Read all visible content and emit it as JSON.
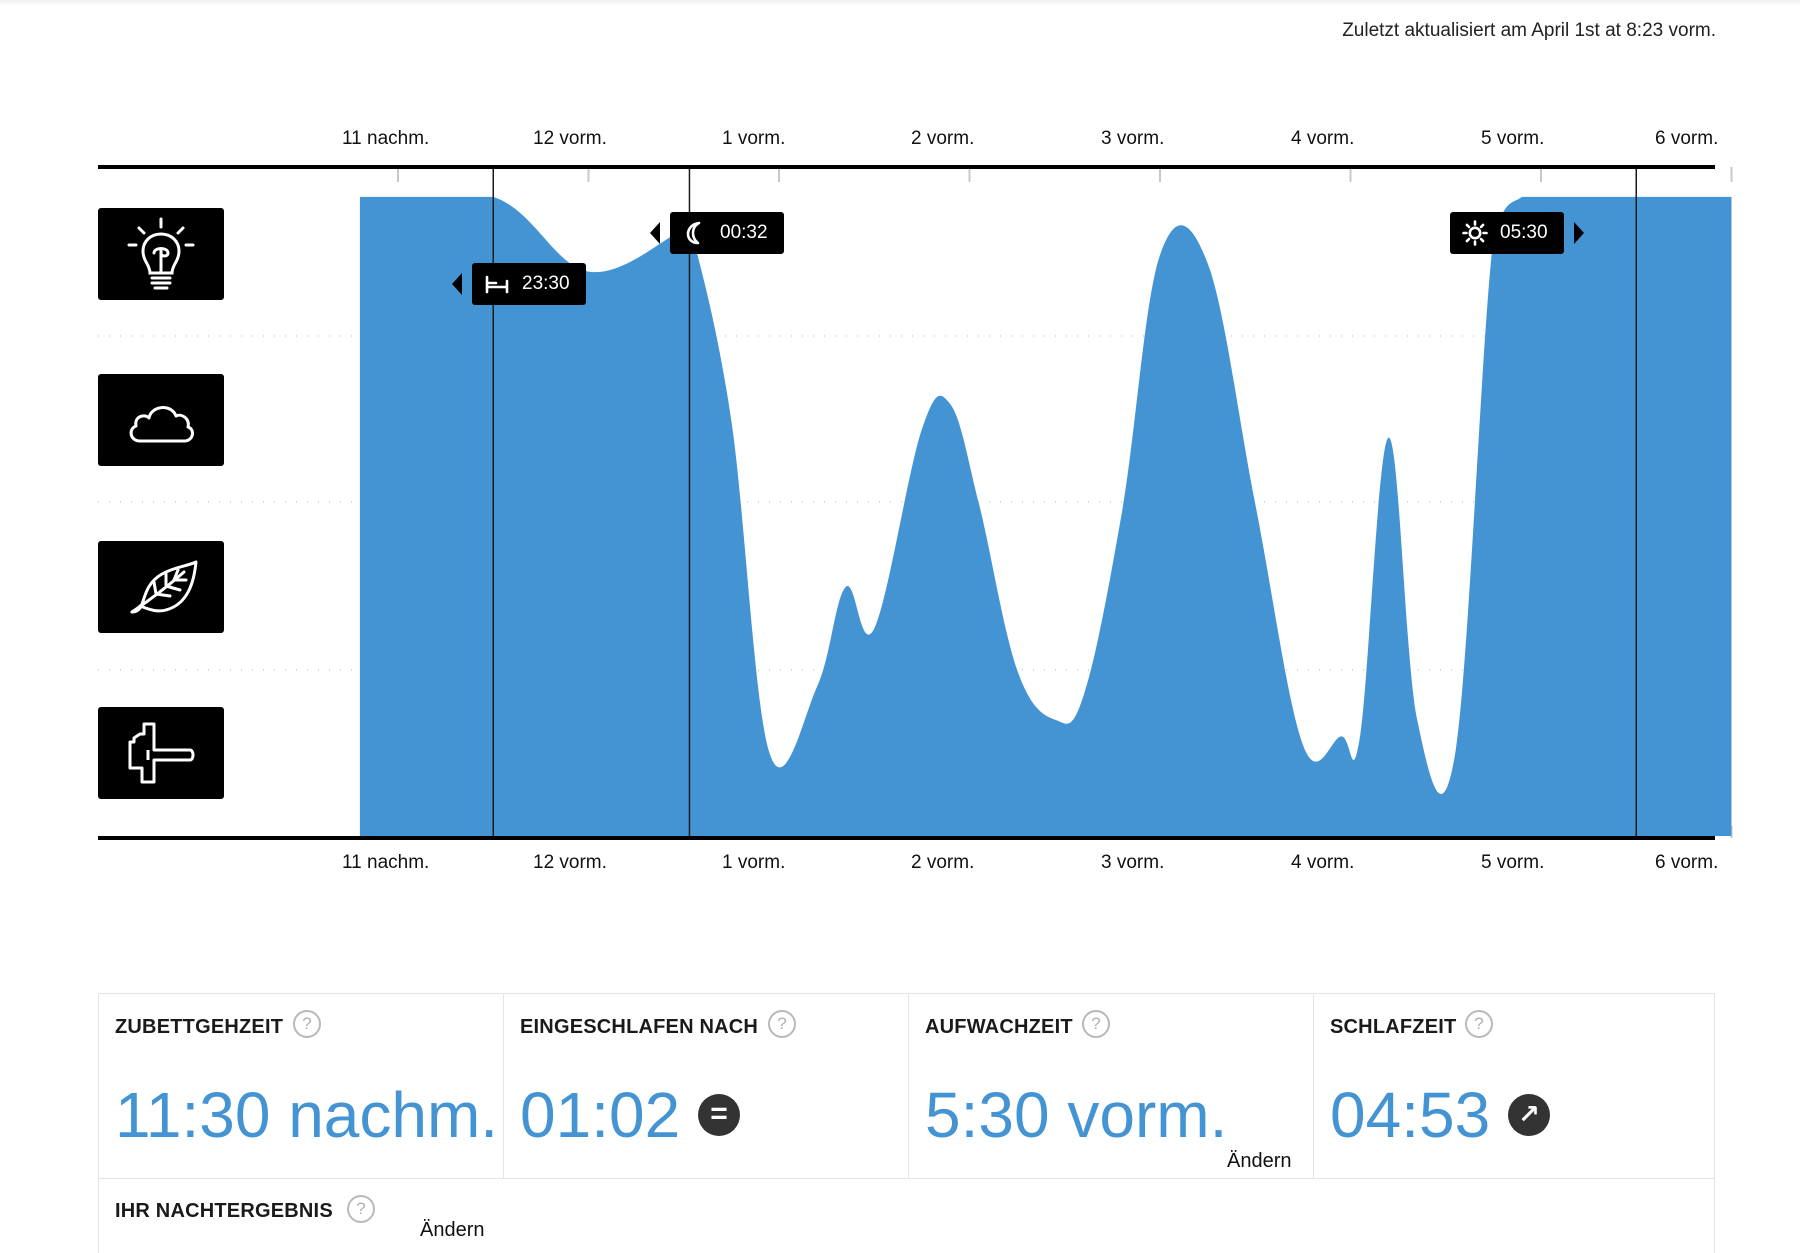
{
  "header": {
    "updated_text": "Zuletzt aktualisiert am April 1st at 8:23 vorm."
  },
  "colors": {
    "area": "#4494d4",
    "icon_bg": "#000000",
    "value_text": "#4494d4"
  },
  "axis": {
    "tick_labels": [
      "11 nachm.",
      "12 vorm.",
      "1 vorm.",
      "2 vorm.",
      "3 vorm.",
      "4 vorm.",
      "5 vorm.",
      "6 vorm."
    ]
  },
  "sleep_stages": [
    {
      "icon": "lightbulb-icon"
    },
    {
      "icon": "cloud-icon"
    },
    {
      "icon": "leaf-icon"
    },
    {
      "icon": "anvil-icon"
    }
  ],
  "markers": {
    "bedtime": {
      "label": "23:30",
      "icon": "bed-icon"
    },
    "asleep": {
      "label": "00:32",
      "icon": "moon-icon"
    },
    "wake": {
      "label": "05:30",
      "icon": "sun-icon"
    }
  },
  "chart_data": {
    "type": "area",
    "x_unit": "hours after 11 nachm.",
    "xlim": [
      -0.2,
      7.0
    ],
    "y_levels": [
      "awake",
      "light",
      "deep",
      "very deep"
    ],
    "ylim": [
      0,
      3.85
    ],
    "x": [
      -0.2,
      0.5,
      1.0,
      1.5,
      1.55,
      1.75,
      1.95,
      2.2,
      2.35,
      2.5,
      2.75,
      2.9,
      3.05,
      3.25,
      3.45,
      3.6,
      3.8,
      4.0,
      4.25,
      4.5,
      4.75,
      4.95,
      5.05,
      5.2,
      5.35,
      5.55,
      5.75,
      5.9,
      6.02,
      6.1,
      6.3,
      6.5,
      6.7,
      7.0
    ],
    "y": [
      3.85,
      3.85,
      3.4,
      3.65,
      3.6,
      2.5,
      0.5,
      0.9,
      1.5,
      1.25,
      2.45,
      2.6,
      2.0,
      1.0,
      0.7,
      0.85,
      1.95,
      3.5,
      3.45,
      2.0,
      0.55,
      0.6,
      0.6,
      2.4,
      0.7,
      0.5,
      3.6,
      3.85,
      3.85,
      3.85,
      3.85,
      3.85,
      3.85,
      3.85
    ],
    "events": [
      {
        "label": "23:30",
        "x": 0.5
      },
      {
        "label": "00:32",
        "x": 1.53
      },
      {
        "label": "05:30",
        "x": 6.5
      }
    ]
  },
  "stats": [
    {
      "title": "ZUBETTGEHZEIT",
      "value": "11:30 nachm.",
      "help": "?"
    },
    {
      "title": "EINGESCHLAFEN NACH",
      "value": "01:02",
      "help": "?",
      "badge": "="
    },
    {
      "title": "AUFWACHZEIT",
      "value": "5:30 vorm.",
      "help": "?",
      "action": "Ändern"
    },
    {
      "title": "SCHLAFZEIT",
      "value": "04:53",
      "help": "?",
      "badge": "↗"
    }
  ],
  "night_result": {
    "title": "IHR NACHTERGEBNIS",
    "help": "?",
    "action": "Ändern"
  }
}
